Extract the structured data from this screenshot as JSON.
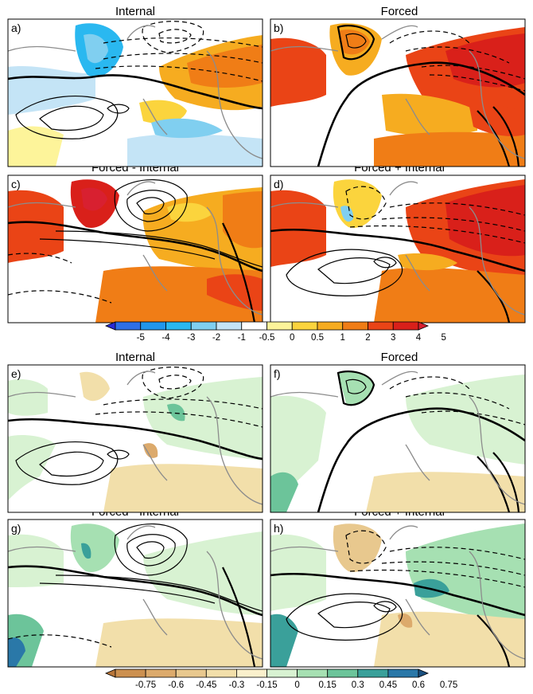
{
  "figure": {
    "panel_titles": {
      "internal": "Internal",
      "forced": "Forced",
      "forced_minus_internal": "Forced - Internal",
      "forced_plus_internal": "Forced + Internal"
    }
  },
  "chart_data": [
    {
      "type": "heatmap",
      "variable": "temperature anomaly (shading) with pressure contours",
      "panels": [
        {
          "label": "a)",
          "title": "Internal"
        },
        {
          "label": "b)",
          "title": "Forced"
        },
        {
          "label": "c)",
          "title": "Forced - Internal"
        },
        {
          "label": "d)",
          "title": "Forced + Internal"
        }
      ],
      "colorbar": {
        "ticks": [
          "-5",
          "-4",
          "-3",
          "-2",
          "-1",
          "-0.5",
          "0",
          "0.5",
          "1",
          "2",
          "3",
          "4",
          "5"
        ],
        "colors": [
          "#2a2bd6",
          "#2e6fe6",
          "#2196ec",
          "#2ab8f0",
          "#80cff0",
          "#c4e4f6",
          "#ffffff",
          "#fdf49a",
          "#fbd43d",
          "#f6ac20",
          "#f07d16",
          "#ea4416",
          "#d9201a",
          "#d82030"
        ]
      }
    },
    {
      "type": "heatmap",
      "variable": "precipitation anomaly (shading) with pressure contours",
      "panels": [
        {
          "label": "e)",
          "title": "Internal"
        },
        {
          "label": "f)",
          "title": "Forced"
        },
        {
          "label": "g)",
          "title": "Forced - Internal"
        },
        {
          "label": "h)",
          "title": "Forced + Internal"
        }
      ],
      "colorbar": {
        "ticks": [
          "-0.75",
          "-0.6",
          "-0.45",
          "-0.3",
          "-0.15",
          "0",
          "0.15",
          "0.3",
          "0.45",
          "0.6",
          "0.75"
        ],
        "colors": [
          "#b8763a",
          "#cc9050",
          "#dcaa6c",
          "#e8c88e",
          "#f2dfaa",
          "#faf0cc",
          "#d8f2d2",
          "#a6e0b2",
          "#6cc49a",
          "#3aa09a",
          "#2a78a8",
          "#1a5080"
        ]
      }
    }
  ]
}
